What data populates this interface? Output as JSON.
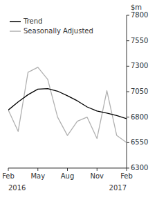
{
  "chart_data": {
    "type": "line",
    "categories": [
      "Feb",
      null,
      null,
      "May",
      null,
      null,
      "Aug",
      null,
      null,
      "Nov",
      null,
      null,
      "Feb"
    ],
    "series": [
      {
        "name": "Seasonally Adjusted",
        "color": "#b0b0b0",
        "values": [
          6870,
          6660,
          7240,
          7290,
          7170,
          6800,
          6620,
          6760,
          6800,
          6590,
          7060,
          6620,
          6550
        ]
      },
      {
        "name": "Trend",
        "color": "#000000",
        "values": [
          6870,
          6950,
          7020,
          7075,
          7080,
          7055,
          7010,
          6960,
          6900,
          6860,
          6840,
          6815,
          6785
        ]
      }
    ],
    "y_label": "$m",
    "annotations": [
      "2016",
      "2017"
    ],
    "ylim": [
      6300,
      7800
    ],
    "yticks": [
      6300,
      6550,
      6800,
      7050,
      7300,
      7550,
      7800
    ],
    "grid": false,
    "legend": "upper-left"
  }
}
